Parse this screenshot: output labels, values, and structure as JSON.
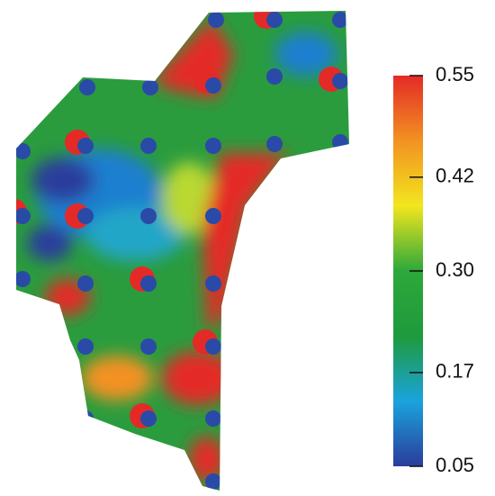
{
  "chart_data": {
    "type": "contour",
    "clim": [
      0.05,
      0.55
    ],
    "colormap": [
      "#2a3c9c",
      "#1aa3dc",
      "#1f9a3c",
      "#2da83a",
      "#f2e61e",
      "#f29222",
      "#e42a26"
    ],
    "cticks": [
      0.05,
      0.17,
      {
        "value": 0.3,
        "label": "0.30"
      },
      0.42,
      0.55
    ]
  }
}
